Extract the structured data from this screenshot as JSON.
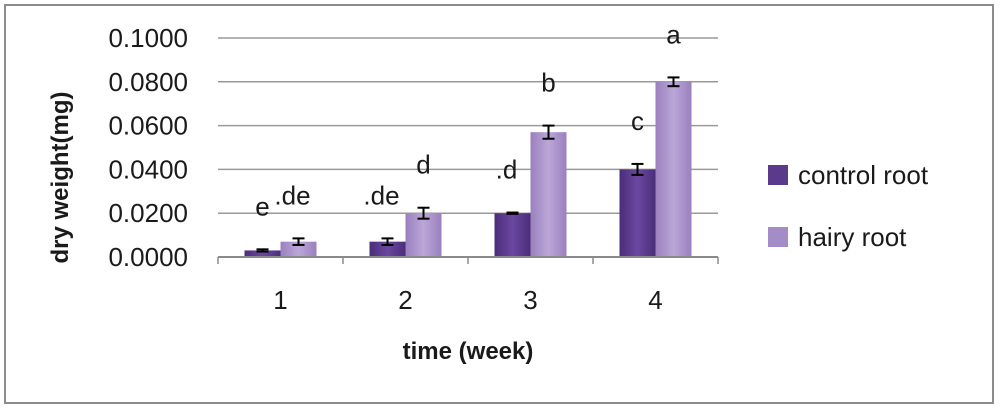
{
  "chart_data": {
    "type": "bar",
    "xlabel": "time (week)",
    "ylabel": "dry weight(mg)",
    "categories": [
      "1",
      "2",
      "3",
      "4"
    ],
    "ylim": [
      0,
      0.1
    ],
    "yticks": [
      "0.0000",
      "0.0200",
      "0.0400",
      "0.0600",
      "0.0800",
      "0.1000"
    ],
    "grid": "horizontal",
    "legend_position": "right",
    "series": [
      {
        "name": "control root",
        "color": "#5b3a8c",
        "values": [
          0.003,
          0.007,
          0.02,
          0.04
        ],
        "errors": [
          0.0005,
          0.0015,
          0.0003,
          0.0025
        ],
        "labels": [
          "e",
          ".de",
          ".d",
          "c"
        ]
      },
      {
        "name": "hairy root",
        "color": "#a48cc6",
        "values": [
          0.007,
          0.02,
          0.057,
          0.08
        ],
        "errors": [
          0.0015,
          0.0025,
          0.003,
          0.002
        ],
        "labels": [
          ".de",
          "d",
          "b",
          "a"
        ]
      }
    ]
  }
}
